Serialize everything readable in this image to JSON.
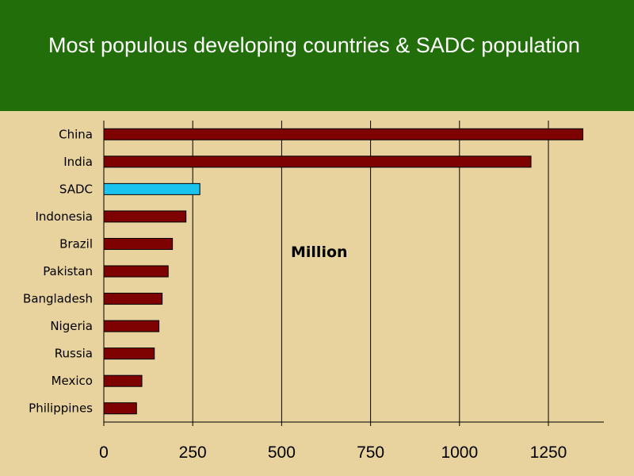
{
  "slide": {
    "title": "Most populous developing countries & SADC population",
    "header_color": "#226e0b",
    "background_color": "#e8d29e"
  },
  "chart_data": {
    "type": "bar",
    "orientation": "horizontal",
    "title": "Most populous developing countries & SADC population",
    "xlabel": "",
    "ylabel": "",
    "annotation": "Million",
    "categories": [
      "China",
      "India",
      "SADC",
      "Indonesia",
      "Brazil",
      "Pakistan",
      "Bangladesh",
      "Nigeria",
      "Russia",
      "Mexico",
      "Philippines"
    ],
    "values": [
      1347,
      1201,
      270,
      231,
      193,
      181,
      164,
      155,
      142,
      107,
      92
    ],
    "highlight": "SADC",
    "bar_color": "#7e0202",
    "highlight_color": "#19c3ee",
    "xlim": [
      0,
      1400
    ],
    "xticks": [
      0,
      250,
      500,
      750,
      1000,
      1250
    ],
    "grid": "vertical"
  }
}
